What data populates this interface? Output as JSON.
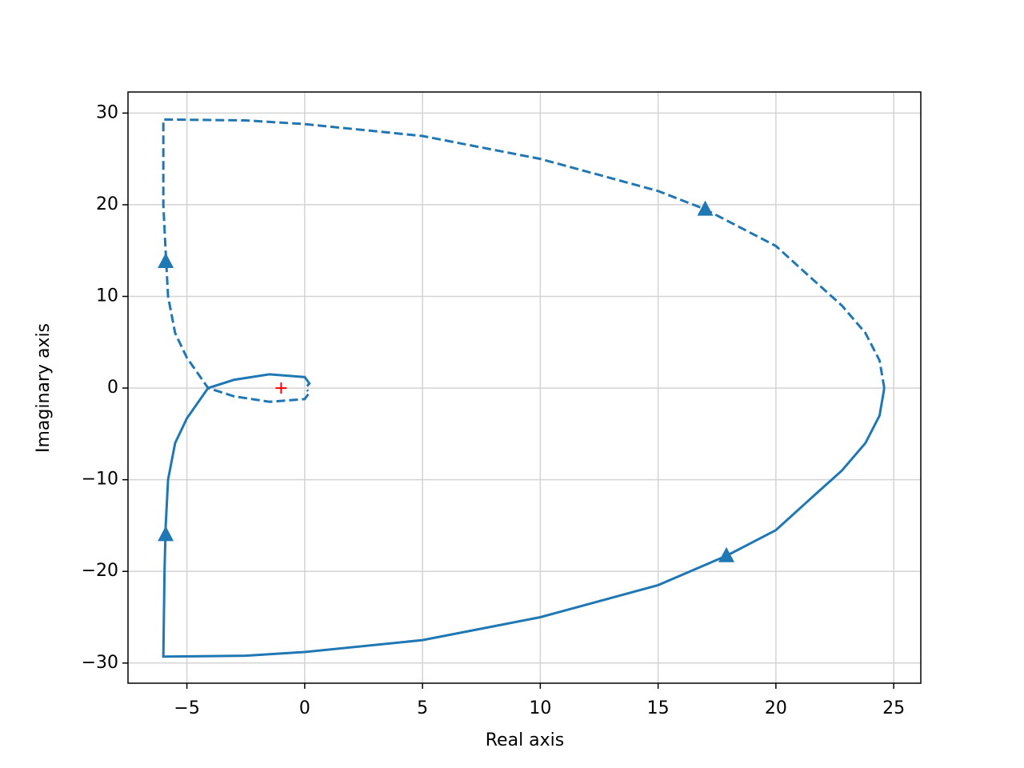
{
  "chart_data": {
    "type": "nyquist",
    "xlabel": "Real axis",
    "ylabel": "Imaginary axis",
    "xlim": [
      -7.5,
      26.15
    ],
    "ylim": [
      -32.2,
      32.3
    ],
    "xticks": [
      {
        "value": -5,
        "label": "−5"
      },
      0,
      5,
      10,
      15,
      20,
      25
    ],
    "yticks": [
      {
        "value": -30,
        "label": "−30"
      },
      {
        "value": -20,
        "label": "−20"
      },
      {
        "value": -10,
        "label": "−10"
      },
      0,
      10,
      20,
      30
    ],
    "grid": true,
    "series": [
      {
        "color": "#1f77b4",
        "dash": false,
        "x": [
          24.6,
          24.4,
          23.8,
          22.8,
          21.5,
          20,
          17.9,
          15,
          10,
          5,
          0,
          -2.5,
          -6,
          -5.95,
          -5.9,
          -5.8,
          -5.5,
          -5,
          -4.1,
          -3,
          -1.5,
          0,
          0.2,
          0.1
        ],
        "y": [
          0,
          -3,
          -6,
          -9,
          -12,
          -15.5,
          -18.3,
          -21.5,
          -25,
          -27.5,
          -28.8,
          -29.2,
          -29.3,
          -20,
          -15,
          -10,
          -6,
          -3.3,
          0,
          0.9,
          1.5,
          1.2,
          0.5,
          0.2
        ],
        "arrow_x": [
          -5.9,
          17.9
        ],
        "arrow_y": [
          -16,
          -18.3
        ]
      },
      {
        "color": "#1f77b4",
        "dash": true,
        "x": [
          24.6,
          24.4,
          23.8,
          22.8,
          21.5,
          20,
          17,
          15,
          10,
          5,
          0,
          -2.5,
          -6,
          -6,
          -5.9,
          -5.8,
          -5.5,
          -5,
          -4.1,
          -3,
          -1.5,
          0,
          0.2,
          0.1
        ],
        "y": [
          0,
          3,
          6,
          9,
          12,
          15.5,
          19.5,
          21.5,
          25,
          27.5,
          28.8,
          29.2,
          29.3,
          20,
          14.8,
          10,
          6,
          3.3,
          0,
          -0.9,
          -1.5,
          -1.2,
          -0.5,
          -0.2
        ],
        "arrow_x": [
          -5.9,
          17
        ],
        "arrow_y": [
          13.8,
          19.5
        ]
      }
    ],
    "critical_point": {
      "x": -1,
      "y": 0,
      "color": "#ff0000"
    }
  }
}
